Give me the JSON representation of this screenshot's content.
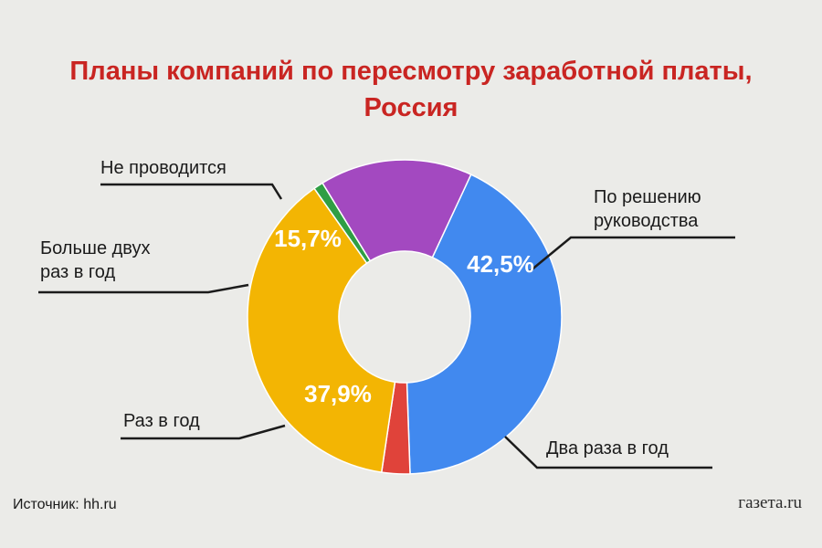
{
  "header": {
    "title_line1": "Планы компаний по пересмотру заработной платы,",
    "title_line2": "Россия"
  },
  "chart_data": {
    "type": "pie",
    "donut": true,
    "title": "Планы компаний по пересмотру заработной платы, Россия",
    "slices": [
      {
        "label_lines": [
          "По решению",
          "руководства"
        ],
        "value": 42.5,
        "value_label": "42,5%",
        "color": "#4189ef"
      },
      {
        "label_lines": [
          "Два раза в год"
        ],
        "value": 2.9,
        "value_label": "",
        "color": "#e0433a"
      },
      {
        "label_lines": [
          "Раз в год"
        ],
        "value": 37.9,
        "value_label": "37,9%",
        "color": "#f3b503"
      },
      {
        "label_lines": [
          "Больше двух",
          "раз в год"
        ],
        "value": 1.0,
        "value_label": "",
        "color": "#2f9e44"
      },
      {
        "label_lines": [
          "Не проводится"
        ],
        "value": 15.7,
        "value_label": "15,7%",
        "color": "#a349c0"
      }
    ]
  },
  "footer": {
    "source": "Источник: hh.ru",
    "brand": "газета.ru"
  }
}
